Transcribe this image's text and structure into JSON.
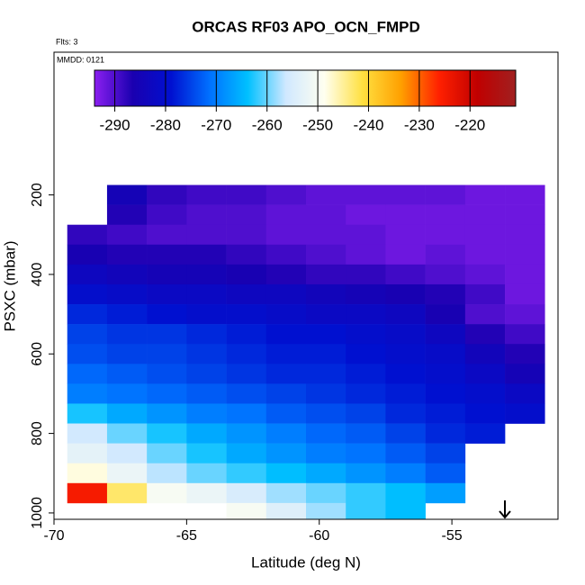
{
  "chart_data": {
    "type": "heatmap",
    "title": "ORCAS RF03 APO_OCN_FMPD",
    "subtitle": "Flts: 3",
    "annotation": "MMDD: 0121",
    "xlabel": "Latitude (deg N)",
    "ylabel": "PSXC (mbar)",
    "xlim": [
      -70,
      -51
    ],
    "xticks": [
      -70,
      -65,
      -60,
      -55
    ],
    "ylim": [
      1016,
      -159
    ],
    "yticks": [
      200,
      400,
      600,
      800,
      1000
    ],
    "x_edges": [
      -69.5,
      -68,
      -66.5,
      -65,
      -63.5,
      -62,
      -60.5,
      -59,
      -57.5,
      -56,
      -54.5,
      -53,
      -51.5
    ],
    "y_edges": [
      175,
      225,
      275,
      325,
      375,
      425,
      475,
      525,
      575,
      625,
      675,
      725,
      775,
      825,
      875,
      925,
      975,
      1016
    ],
    "values": [
      [
        null,
        -285,
        -288,
        -289,
        -289,
        -290,
        -291,
        -291,
        -291,
        -291,
        -292,
        -292
      ],
      [
        null,
        -287,
        -289,
        -290,
        -290,
        -291,
        -291,
        -292,
        -292,
        -292,
        -292,
        -292
      ],
      [
        -288,
        -289,
        -290,
        -290,
        -290,
        -291,
        -291,
        -291,
        -292,
        -292,
        -292,
        -292
      ],
      [
        -286,
        -287,
        -287,
        -287,
        -288,
        -289,
        -290,
        -291,
        -292,
        -291,
        -292,
        -292
      ],
      [
        -283,
        -284,
        -285,
        -285,
        -286,
        -287,
        -288,
        -288,
        -289,
        -290,
        -291,
        -292
      ],
      [
        -280,
        -281,
        -282,
        -282,
        -283,
        -283,
        -284,
        -285,
        -286,
        -287,
        -289,
        -292
      ],
      [
        -277,
        -278,
        -279,
        -280,
        -280,
        -281,
        -282,
        -282,
        -283,
        -286,
        -290,
        -291
      ],
      [
        -275,
        -276,
        -276,
        -277,
        -278,
        -279,
        -279,
        -280,
        -281,
        -283,
        -287,
        -289
      ],
      [
        -274,
        -275,
        -275,
        -276,
        -277,
        -278,
        -278,
        -279,
        -280,
        -281,
        -284,
        -287
      ],
      [
        -272,
        -273,
        -274,
        -275,
        -276,
        -277,
        -277,
        -278,
        -279,
        -280,
        -282,
        -285
      ],
      [
        -270,
        -271,
        -272,
        -273,
        -274,
        -275,
        -276,
        -277,
        -278,
        -279,
        -280,
        -282
      ],
      [
        -263,
        -266,
        -268,
        -270,
        -271,
        -273,
        -274,
        -275,
        -277,
        -278,
        -279,
        -280
      ],
      [
        -256,
        -260,
        -263,
        -266,
        -268,
        -270,
        -272,
        -273,
        -275,
        -277,
        -278,
        null
      ],
      [
        -253,
        -256,
        -260,
        -263,
        -266,
        -268,
        -270,
        -271,
        -273,
        -275,
        null,
        null
      ],
      [
        -248,
        -252,
        -257,
        -260,
        -262,
        -264,
        -266,
        -268,
        -270,
        -273,
        null,
        null
      ],
      [
        -225,
        -243,
        -250,
        -252,
        -255,
        -258,
        -260,
        -262,
        -264,
        -267,
        null,
        null
      ],
      [
        null,
        null,
        null,
        null,
        -250,
        -254,
        -258,
        -262,
        -264,
        null,
        null,
        null
      ]
    ],
    "zlim": [
      -294,
      -211
    ],
    "zticks": [
      -290,
      -280,
      -270,
      -260,
      -250,
      -240,
      -230,
      -220
    ],
    "colorscale": [
      "#8b1ff0",
      "#1a00b0",
      "#0010d0",
      "#0070ff",
      "#00c0ff",
      "#d0e8ff",
      "#fffff0",
      "#ffe040",
      "#ffa000",
      "#ff2000",
      "#c00000",
      "#a02020"
    ]
  }
}
